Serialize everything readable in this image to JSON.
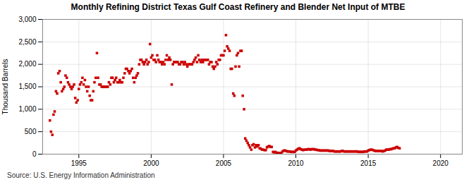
{
  "chart_data": {
    "type": "scatter",
    "title": "Monthly Refining District Texas Gulf Coast Refinery and Blender Net Input of MTBE",
    "ylabel": "Thousand Barrels",
    "annotation": "Source: U.S. Energy Information Administration",
    "color": "#cc0000",
    "marker": "square",
    "grid": true,
    "xlim": [
      1992.5,
      2021.5
    ],
    "xticks": [
      1995,
      2000,
      2005,
      2010,
      2015,
      2020
    ],
    "ylim": [
      0,
      3000
    ],
    "yticks": [
      0,
      500,
      {
        "value": 1000,
        "label": "1,000"
      },
      {
        "value": 1500,
        "label": "1,500"
      },
      {
        "value": 2000,
        "label": "2,000"
      },
      {
        "value": 2500,
        "label": "2,500"
      },
      {
        "value": 3000,
        "label": "3,000"
      }
    ],
    "x": [
      1993.0,
      1993.08,
      1993.17,
      1993.25,
      1993.33,
      1993.42,
      1993.5,
      1993.58,
      1993.67,
      1993.75,
      1993.83,
      1993.92,
      1994.0,
      1994.08,
      1994.17,
      1994.25,
      1994.33,
      1994.42,
      1994.5,
      1994.58,
      1994.67,
      1994.75,
      1994.83,
      1994.92,
      1995.0,
      1995.08,
      1995.17,
      1995.25,
      1995.33,
      1995.42,
      1995.5,
      1995.58,
      1995.67,
      1995.75,
      1995.83,
      1995.92,
      1996.0,
      1996.08,
      1996.17,
      1996.25,
      1996.33,
      1996.42,
      1996.5,
      1996.58,
      1996.67,
      1996.75,
      1996.83,
      1996.92,
      1997.0,
      1997.08,
      1997.17,
      1997.25,
      1997.33,
      1997.42,
      1997.5,
      1997.58,
      1997.67,
      1997.75,
      1997.83,
      1997.92,
      1998.0,
      1998.08,
      1998.17,
      1998.25,
      1998.33,
      1998.42,
      1998.5,
      1998.58,
      1998.67,
      1998.75,
      1998.83,
      1998.92,
      1999.0,
      1999.08,
      1999.17,
      1999.25,
      1999.33,
      1999.42,
      1999.5,
      1999.58,
      1999.67,
      1999.75,
      1999.83,
      1999.92,
      2000.0,
      2000.08,
      2000.17,
      2000.25,
      2000.33,
      2000.42,
      2000.5,
      2000.58,
      2000.67,
      2000.75,
      2000.83,
      2000.92,
      2001.0,
      2001.08,
      2001.17,
      2001.25,
      2001.33,
      2001.42,
      2001.5,
      2001.58,
      2001.67,
      2001.75,
      2001.83,
      2001.92,
      2002.0,
      2002.08,
      2002.17,
      2002.25,
      2002.33,
      2002.42,
      2002.5,
      2002.58,
      2002.67,
      2002.75,
      2002.83,
      2002.92,
      2003.0,
      2003.08,
      2003.17,
      2003.25,
      2003.33,
      2003.42,
      2003.5,
      2003.58,
      2003.67,
      2003.75,
      2003.83,
      2003.92,
      2004.0,
      2004.08,
      2004.17,
      2004.25,
      2004.33,
      2004.42,
      2004.5,
      2004.58,
      2004.67,
      2004.75,
      2004.83,
      2004.92,
      2005.0,
      2005.08,
      2005.17,
      2005.25,
      2005.33,
      2005.42,
      2005.5,
      2005.58,
      2005.67,
      2005.75,
      2005.83,
      2005.92,
      2006.0,
      2006.08,
      2006.17,
      2006.25,
      2006.33,
      2006.42,
      2006.5,
      2006.58,
      2006.67,
      2006.75,
      2006.83,
      2006.92,
      2007.0,
      2007.08,
      2007.17,
      2007.25,
      2007.33,
      2007.42,
      2007.5,
      2007.58,
      2007.67,
      2007.75,
      2007.83,
      2007.92,
      2008.0,
      2008.08,
      2008.17,
      2008.25,
      2008.33,
      2008.42,
      2008.5,
      2008.58,
      2008.67,
      2008.75,
      2008.83,
      2008.92,
      2009.0,
      2009.08,
      2009.17,
      2009.25,
      2009.33,
      2009.42,
      2009.5,
      2009.58,
      2009.67,
      2009.75,
      2009.83,
      2009.92,
      2010.0,
      2010.08,
      2010.17,
      2010.25,
      2010.33,
      2010.42,
      2010.5,
      2010.58,
      2010.67,
      2010.75,
      2010.83,
      2010.92,
      2011.0,
      2011.08,
      2011.17,
      2011.25,
      2011.33,
      2011.42,
      2011.5,
      2011.58,
      2011.67,
      2011.75,
      2011.83,
      2011.92,
      2012.0,
      2012.08,
      2012.17,
      2012.25,
      2012.33,
      2012.42,
      2012.5,
      2012.58,
      2012.67,
      2012.75,
      2012.83,
      2012.92,
      2013.0,
      2013.08,
      2013.17,
      2013.25,
      2013.33,
      2013.42,
      2013.5,
      2013.58,
      2013.67,
      2013.75,
      2013.83,
      2013.92,
      2014.0,
      2014.08,
      2014.17,
      2014.25,
      2014.33,
      2014.42,
      2014.5,
      2014.58,
      2014.67,
      2014.75,
      2014.83,
      2014.92,
      2015.0,
      2015.08,
      2015.17,
      2015.25,
      2015.33,
      2015.42,
      2015.5,
      2015.58,
      2015.67,
      2015.75,
      2015.83,
      2015.92,
      2016.0,
      2016.08,
      2016.17,
      2016.25,
      2016.33,
      2016.42,
      2016.5,
      2016.58,
      2016.67,
      2016.75,
      2016.83,
      2016.92,
      2017.0,
      2017.08,
      2017.17
    ],
    "values": [
      750,
      500,
      430,
      880,
      950,
      1400,
      1350,
      1800,
      1850,
      1600,
      1400,
      1450,
      1500,
      1750,
      1700,
      1600,
      1550,
      1500,
      1450,
      1500,
      1550,
      1250,
      1150,
      1200,
      1450,
      1550,
      1600,
      1700,
      1550,
      1650,
      1500,
      1400,
      1500,
      1300,
      1200,
      1200,
      1400,
      1600,
      1700,
      2250,
      1700,
      1550,
      1550,
      1500,
      1500,
      1500,
      1500,
      1500,
      1500,
      1600,
      1550,
      1700,
      1700,
      1600,
      1650,
      1700,
      1600,
      1600,
      1650,
      1600,
      1600,
      1700,
      1800,
      1900,
      1900,
      1850,
      1800,
      1850,
      1900,
      1700,
      1600,
      1700,
      1750,
      1800,
      2000,
      2100,
      2100,
      2050,
      2000,
      2050,
      2100,
      2000,
      2050,
      2450,
      2150,
      2200,
      2100,
      2100,
      2050,
      2200,
      2100,
      2050,
      2050,
      2000,
      2050,
      2000,
      2100,
      2200,
      2100,
      2150,
      2100,
      1550,
      2000,
      2050,
      2050,
      2050,
      2050,
      2000,
      2000,
      2050,
      2050,
      2000,
      2050,
      2000,
      1950,
      2000,
      2000,
      2000,
      2000,
      2050,
      2100,
      2150,
      2050,
      2200,
      2100,
      2050,
      2100,
      2050,
      2100,
      2100,
      2100,
      2100,
      2000,
      2050,
      2050,
      1950,
      1900,
      1950,
      2050,
      2000,
      2100,
      2100,
      2200,
      2200,
      2200,
      2300,
      2650,
      2400,
      2350,
      2300,
      1900,
      1900,
      1350,
      1300,
      1950,
      2200,
      2250,
      1950,
      2300,
      2300,
      1300,
      1000,
      350,
      300,
      250,
      200,
      150,
      100,
      200,
      220,
      150,
      200,
      170,
      200,
      130,
      120,
      100,
      100,
      90,
      90,
      150,
      170,
      180,
      160,
      160,
      50,
      40,
      50,
      30,
      30,
      20,
      20,
      30,
      60,
      80,
      80,
      70,
      60,
      60,
      60,
      50,
      50,
      50,
      50,
      80,
      100,
      120,
      130,
      110,
      100,
      90,
      100,
      100,
      100,
      110,
      110,
      100,
      110,
      110,
      110,
      100,
      100,
      90,
      90,
      80,
      80,
      80,
      80,
      80,
      80,
      80,
      80,
      70,
      70,
      70,
      70,
      60,
      60,
      60,
      60,
      60,
      60,
      70,
      70,
      60,
      60,
      60,
      60,
      60,
      60,
      60,
      60,
      60,
      60,
      60,
      60,
      50,
      50,
      50,
      50,
      50,
      60,
      60,
      60,
      80,
      90,
      100,
      100,
      90,
      80,
      70,
      70,
      70,
      70,
      70,
      70,
      60,
      70,
      80,
      100,
      100,
      100,
      110,
      110,
      120,
      130,
      130,
      150,
      160,
      140,
      130
    ]
  }
}
